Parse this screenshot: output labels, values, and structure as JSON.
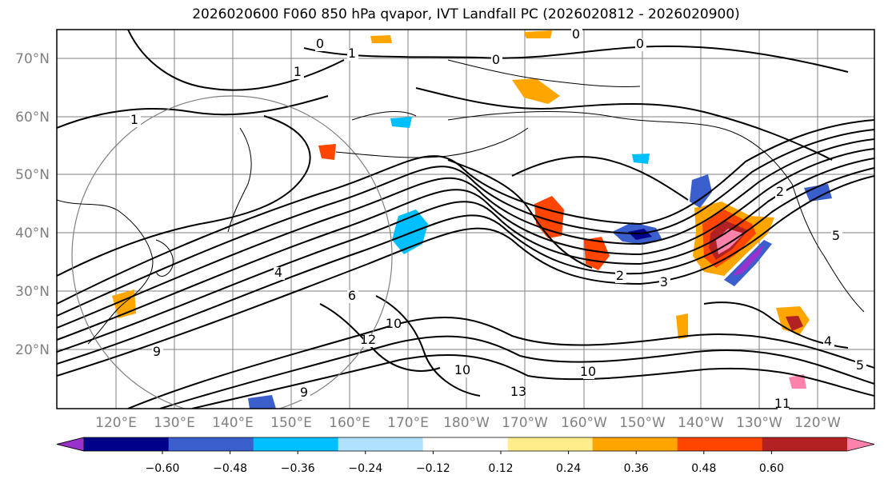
{
  "title": "2026020600 F060 850 hPa qvapor, IVT Landfall PC (2026020812 - 2026020900)",
  "lat_labels": [
    "70°N",
    "60°N",
    "50°N",
    "40°N",
    "30°N",
    "20°N"
  ],
  "lon_labels": [
    "120°E",
    "130°E",
    "140°E",
    "150°E",
    "160°E",
    "170°E",
    "180°W",
    "170°W",
    "160°W",
    "150°W",
    "140°W",
    "130°W",
    "120°W"
  ],
  "colorbar": {
    "colors": [
      "#9932cc",
      "#00008b",
      "#3a5fcd",
      "#00bfff",
      "#b0e2ff",
      "#ffffff",
      "#ffec8b",
      "#ffa500",
      "#ff4500",
      "#b22222",
      "#ff82ab"
    ],
    "tick_labels": [
      "−0.60",
      "−0.48",
      "−0.36",
      "−0.24",
      "−0.12",
      "0.12",
      "0.24",
      "0.36",
      "0.48",
      "0.60"
    ]
  },
  "contour_labels": [
    "0",
    "0",
    "0",
    "0",
    "1",
    "1",
    "1",
    "2",
    "2",
    "3",
    "4",
    "4",
    "5",
    "5",
    "6",
    "9",
    "9",
    "10",
    "10",
    "10",
    "11",
    "12",
    "13"
  ],
  "map_features": {
    "contour_color": "#000000",
    "gridline_color": "#808080",
    "range_circle_color": "#808080",
    "coastline_color": "#000000"
  }
}
